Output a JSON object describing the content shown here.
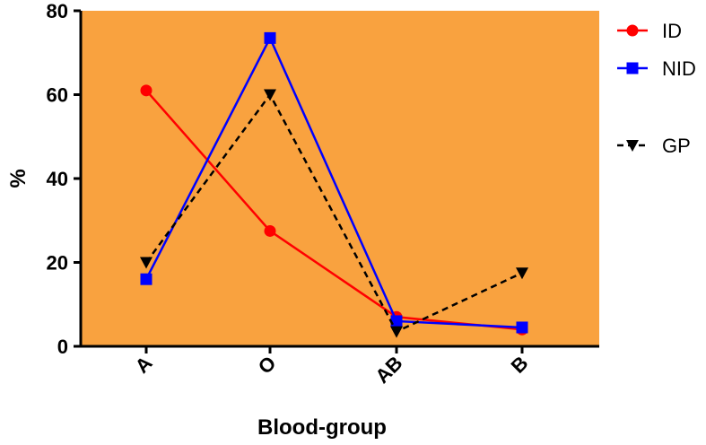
{
  "chart_data": {
    "type": "line",
    "categories": [
      "A",
      "O",
      "AB",
      "B"
    ],
    "xlabel": "Blood-group",
    "ylabel": "%",
    "ylim": [
      0,
      80
    ],
    "yticks": [
      "0",
      "20",
      "40",
      "60",
      "80"
    ],
    "grid": false,
    "legend_position": "right",
    "plot_background": "#F9A23F",
    "series": [
      {
        "name": "ID",
        "values": [
          61,
          27.5,
          7,
          4
        ],
        "color": "#FF0000",
        "marker": "circle",
        "dash": "solid"
      },
      {
        "name": "NID",
        "values": [
          16,
          73.5,
          6,
          4.5
        ],
        "color": "#0000FF",
        "marker": "square",
        "dash": "solid"
      },
      {
        "name": "GP",
        "values": [
          20,
          60,
          3.5,
          17.5
        ],
        "color": "#000000",
        "marker": "triangle-down",
        "dash": "dashed"
      }
    ]
  }
}
